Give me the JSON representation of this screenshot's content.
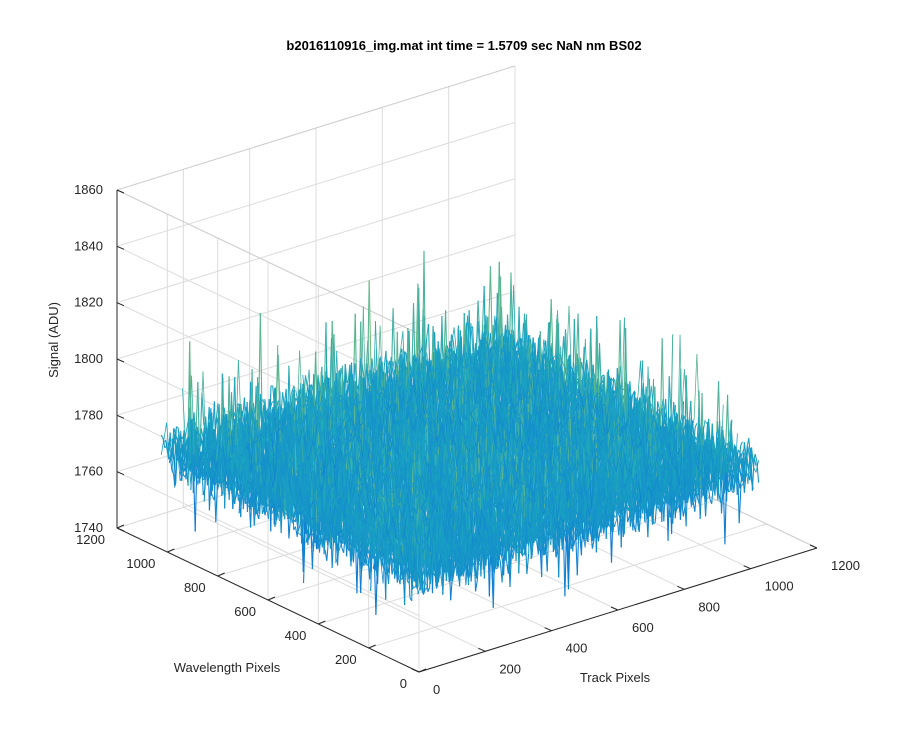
{
  "chart_data": {
    "type": "surface",
    "title": "b2016110916_img.mat int time = 1.5709 sec  NaN nm BS02",
    "xlabel": "Track Pixels",
    "ylabel": "Wavelength Pixels",
    "zlabel": "Signal (ADU)",
    "xlim": [
      0,
      1200
    ],
    "ylim": [
      0,
      1200
    ],
    "zlim": [
      1740,
      1860
    ],
    "x_ticks": [
      "0",
      "200",
      "400",
      "600",
      "800",
      "1000",
      "1200"
    ],
    "y_ticks": [
      "0",
      "200",
      "400",
      "600",
      "800",
      "1000",
      "1200"
    ],
    "z_ticks": [
      "1740",
      "1760",
      "1780",
      "1800",
      "1820",
      "1840",
      "1860"
    ],
    "data_extent": {
      "x": [
        0,
        1024
      ],
      "y": [
        0,
        1024
      ]
    },
    "z_mean": 1775,
    "z_range": [
      1750,
      1840
    ],
    "grid": true,
    "colormap": "parula",
    "colors": {
      "low": "#0d72d8",
      "mid": "#1ba6c0",
      "high": "#a6c85a"
    }
  }
}
